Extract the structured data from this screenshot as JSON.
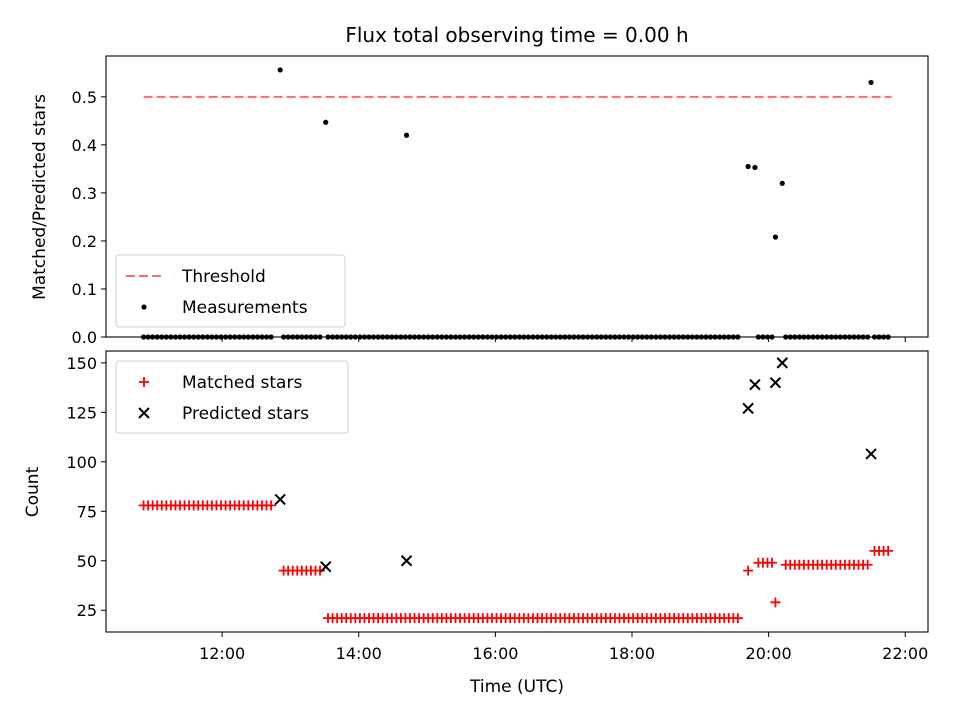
{
  "chart_data": [
    {
      "type": "scatter",
      "title": "Flux total observing time = 0.00 h",
      "xlabel": "",
      "ylabel": "Matched/Predicted stars",
      "xlim": [
        "10:18",
        "22:20"
      ],
      "ylim": [
        0,
        0.585
      ],
      "yticks": [
        0.0,
        0.1,
        0.2,
        0.3,
        0.4,
        0.5
      ],
      "ytick_labels": [
        "0.0",
        "0.1",
        "0.2",
        "0.3",
        "0.4",
        "0.5"
      ],
      "legend_position": "lower-left",
      "series": [
        {
          "name": "Threshold",
          "kind": "dashed-line",
          "color": "#ff6b6b",
          "x": [
            "10:51",
            "21:48"
          ],
          "y": [
            0.5,
            0.5
          ]
        },
        {
          "name": "Measurements",
          "kind": "points",
          "color": "#000000",
          "nonzero": [
            {
              "x": "12:51",
              "y": 0.556
            },
            {
              "x": "13:31",
              "y": 0.447
            },
            {
              "x": "14:42",
              "y": 0.42
            },
            {
              "x": "19:42",
              "y": 0.355
            },
            {
              "x": "19:48",
              "y": 0.353
            },
            {
              "x": "20:06",
              "y": 0.208
            },
            {
              "x": "20:12",
              "y": 0.32
            },
            {
              "x": "21:30",
              "y": 0.53
            }
          ],
          "zero_segments": [
            {
              "start": "10:51",
              "end": "12:45",
              "step_min": 4
            },
            {
              "start": "12:54",
              "end": "13:27",
              "step_min": 4
            },
            {
              "start": "13:33",
              "end": "19:36",
              "step_min": 4
            },
            {
              "start": "19:51",
              "end": "20:03",
              "step_min": 4
            },
            {
              "start": "20:15",
              "end": "21:27",
              "step_min": 4
            },
            {
              "start": "21:33",
              "end": "21:48",
              "step_min": 4
            }
          ]
        }
      ]
    },
    {
      "type": "scatter",
      "title": "",
      "xlabel": "Time (UTC)",
      "ylabel": "Count",
      "xlim": [
        "10:18",
        "22:20"
      ],
      "ylim": [
        14,
        156
      ],
      "yticks": [
        25,
        50,
        75,
        100,
        125,
        150
      ],
      "ytick_labels": [
        "25",
        "50",
        "75",
        "100",
        "125",
        "150"
      ],
      "xticks": [
        "12:00",
        "14:00",
        "16:00",
        "18:00",
        "20:00",
        "22:00"
      ],
      "xtick_labels": [
        "12:00",
        "14:00",
        "16:00",
        "18:00",
        "20:00",
        "22:00"
      ],
      "legend_position": "upper-left",
      "series": [
        {
          "name": "Matched stars",
          "kind": "plus",
          "color": "#ff0000",
          "segments": [
            {
              "start": "10:51",
              "end": "12:45",
              "step_min": 4,
              "y": 78
            },
            {
              "start": "12:54",
              "end": "13:27",
              "step_min": 4,
              "y": 45
            },
            {
              "start": "13:33",
              "end": "19:36",
              "step_min": 4,
              "y": 21
            },
            {
              "start": "19:51",
              "end": "20:03",
              "step_min": 4,
              "y": 49
            },
            {
              "start": "20:15",
              "end": "21:27",
              "step_min": 4,
              "y": 48
            },
            {
              "start": "21:33",
              "end": "21:48",
              "step_min": 4,
              "y": 55
            }
          ],
          "points": [
            {
              "x": "19:42",
              "y": 45
            },
            {
              "x": "20:06",
              "y": 29
            }
          ]
        },
        {
          "name": "Predicted stars",
          "kind": "cross",
          "color": "#000000",
          "points": [
            {
              "x": "12:51",
              "y": 81
            },
            {
              "x": "13:31",
              "y": 47
            },
            {
              "x": "14:42",
              "y": 50
            },
            {
              "x": "19:42",
              "y": 127
            },
            {
              "x": "19:48",
              "y": 139
            },
            {
              "x": "20:06",
              "y": 140
            },
            {
              "x": "20:12",
              "y": 150
            },
            {
              "x": "21:30",
              "y": 104
            }
          ]
        }
      ]
    }
  ]
}
